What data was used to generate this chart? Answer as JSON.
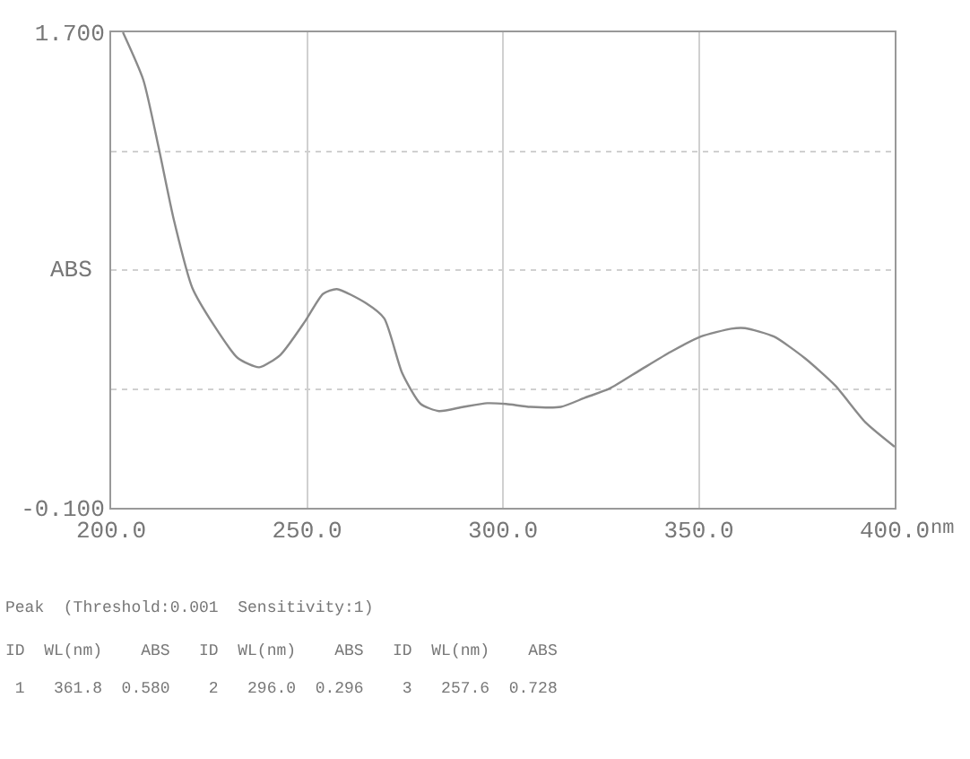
{
  "chart_data": {
    "type": "line",
    "xlabel": "nm",
    "ylabel": "ABS",
    "x": [
      203,
      208.2,
      212.1,
      216.0,
      220.7,
      226.1,
      232.3,
      237.8,
      243.2,
      249.5,
      254.1,
      257.6,
      265.0,
      269.7,
      274.3,
      279.0,
      283.7,
      289.9,
      296.0,
      300.8,
      307.0,
      314.8,
      321.0,
      327.2,
      335.0,
      342.8,
      350.5,
      358.3,
      361.8,
      369.2,
      377.0,
      384.8,
      392.5,
      400
    ],
    "series": [
      {
        "color": "#8a8a8a",
        "values": [
          1.7,
          1.52,
          1.265,
          0.99,
          0.733,
          0.594,
          0.467,
          0.432,
          0.479,
          0.606,
          0.71,
          0.728,
          0.675,
          0.617,
          0.409,
          0.293,
          0.266,
          0.282,
          0.296,
          0.293,
          0.282,
          0.282,
          0.317,
          0.351,
          0.421,
          0.49,
          0.548,
          0.578,
          0.58,
          0.548,
          0.467,
          0.363,
          0.224,
          0.131
        ]
      }
    ],
    "xlim": [
      200,
      400
    ],
    "xticks": [
      {
        "value": 200,
        "label": "200.0"
      },
      {
        "value": 250,
        "label": "250.0"
      },
      {
        "value": 300,
        "label": "300.0"
      },
      {
        "value": 350,
        "label": "350.0"
      },
      {
        "value": 400,
        "label": "400.0"
      }
    ],
    "ylim": [
      -0.1,
      1.7
    ],
    "yticks": [
      {
        "value": -0.1,
        "label": "-0.100"
      },
      {
        "value": 0.35,
        "label": null
      },
      {
        "value": 0.8,
        "label": null
      },
      {
        "value": 1.25,
        "label": null
      },
      {
        "value": 1.7,
        "label": "1.700"
      }
    ],
    "grid": true,
    "marker": "none",
    "line_style": "solid",
    "annotations": [
      "Peak  (Threshold:0.001  Sensitivity:1)",
      "ID  WL(nm)    ABS   ID  WL(nm)    ABS   ID  WL(nm)    ABS",
      " 1   361.8  0.580    2   296.0  0.296    3   257.6  0.728"
    ]
  }
}
